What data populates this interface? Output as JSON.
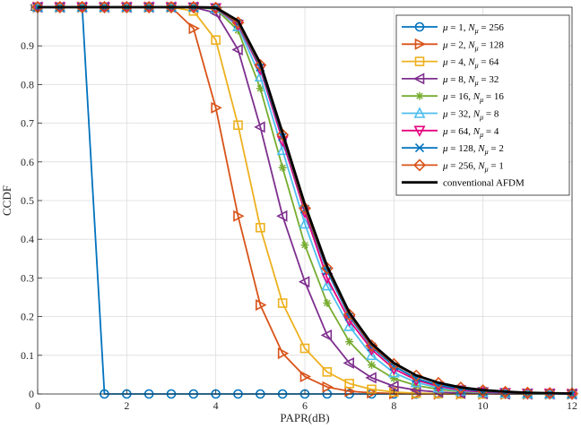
{
  "chart_data": {
    "type": "line",
    "xlabel": "PAPR(dB)",
    "ylabel": "CCDF",
    "xlim": [
      0,
      12
    ],
    "ylim": [
      0,
      1
    ],
    "xticks": [
      "0",
      "2",
      "4",
      "6",
      "8",
      "10",
      "12"
    ],
    "yticks": [
      "0",
      "0.1",
      "0.2",
      "0.3",
      "0.4",
      "0.5",
      "0.6",
      "0.7",
      "0.8",
      "0.9",
      "1"
    ],
    "grid": true,
    "legend_position": "top-right",
    "x": [
      0,
      0.5,
      1,
      1.5,
      2,
      2.5,
      3,
      3.5,
      4,
      4.5,
      5,
      5.5,
      6,
      6.5,
      7,
      7.5,
      8,
      8.5,
      9,
      9.5,
      10,
      10.5,
      11,
      11.5,
      12
    ],
    "series": [
      {
        "name": "μ = 1, N_μ = 256",
        "label": {
          "mu": "1",
          "n": "256"
        },
        "color": "#0072BD",
        "marker": "circle",
        "values": [
          1,
          1,
          1,
          0,
          0,
          0,
          0,
          0,
          0,
          0,
          0,
          0,
          0,
          0,
          0,
          0,
          0,
          0,
          0,
          0,
          0,
          0,
          0,
          0,
          0
        ]
      },
      {
        "name": "μ = 2, N_μ = 128",
        "label": {
          "mu": "2",
          "n": "128"
        },
        "color": "#D95319",
        "marker": "triangle-right",
        "values": [
          1,
          1,
          1,
          1,
          1,
          1,
          1,
          0.945,
          0.74,
          0.46,
          0.23,
          0.105,
          0.045,
          0.018,
          0.007,
          0.003,
          0.001,
          0,
          0,
          0,
          0,
          0,
          0,
          0,
          0
        ]
      },
      {
        "name": "μ = 4, N_μ = 64",
        "label": {
          "mu": "4",
          "n": "64"
        },
        "color": "#EDB120",
        "marker": "square",
        "values": [
          1,
          1,
          1,
          1,
          1,
          1,
          1,
          0.99,
          0.915,
          0.695,
          0.43,
          0.235,
          0.118,
          0.057,
          0.027,
          0.012,
          0.005,
          0.002,
          0.001,
          0,
          0,
          0,
          0,
          0,
          0
        ]
      },
      {
        "name": "μ = 8, N_μ = 32",
        "label": {
          "mu": "8",
          "n": "32"
        },
        "color": "#7E2F8E",
        "marker": "triangle-left",
        "values": [
          1,
          1,
          1,
          1,
          1,
          1,
          1,
          1,
          0.985,
          0.89,
          0.69,
          0.46,
          0.29,
          0.152,
          0.08,
          0.042,
          0.02,
          0.01,
          0.005,
          0.002,
          0.001,
          0,
          0,
          0,
          0
        ]
      },
      {
        "name": "μ = 16, N_μ = 16",
        "label": {
          "mu": "16",
          "n": "16"
        },
        "color": "#77AC30",
        "marker": "star",
        "values": [
          1,
          1,
          1,
          1,
          1,
          1,
          1,
          1,
          0.995,
          0.94,
          0.79,
          0.585,
          0.385,
          0.235,
          0.135,
          0.075,
          0.04,
          0.022,
          0.012,
          0.006,
          0.003,
          0.001,
          0,
          0,
          0
        ]
      },
      {
        "name": "μ = 32, N_μ = 8",
        "label": {
          "mu": "32",
          "n": "8"
        },
        "color": "#4DBEEE",
        "marker": "triangle-up",
        "values": [
          1,
          1,
          1,
          1,
          1,
          1,
          1,
          1,
          0.997,
          0.95,
          0.82,
          0.63,
          0.44,
          0.28,
          0.175,
          0.1,
          0.055,
          0.03,
          0.016,
          0.008,
          0.004,
          0.002,
          0.001,
          0,
          0
        ]
      },
      {
        "name": "μ = 64, N_μ = 4",
        "label": {
          "mu": "64",
          "n": "4"
        },
        "color": "#E6007E",
        "marker": "triangle-down",
        "values": [
          1,
          1,
          1,
          1,
          1,
          1,
          1,
          1,
          0.998,
          0.955,
          0.84,
          0.655,
          0.47,
          0.3,
          0.19,
          0.115,
          0.065,
          0.036,
          0.02,
          0.01,
          0.005,
          0.003,
          0.001,
          0.001,
          0
        ]
      },
      {
        "name": "μ = 128, N_μ = 2",
        "label": {
          "mu": "128",
          "n": "2"
        },
        "color": "#0072BD",
        "marker": "x",
        "values": [
          1,
          1,
          1,
          1,
          1,
          1,
          1,
          1,
          0.998,
          0.958,
          0.845,
          0.665,
          0.478,
          0.318,
          0.2,
          0.122,
          0.072,
          0.04,
          0.023,
          0.013,
          0.007,
          0.004,
          0.002,
          0.001,
          0
        ]
      },
      {
        "name": "μ = 256, N_μ = 1",
        "label": {
          "mu": "256",
          "n": "1"
        },
        "color": "#D95319",
        "marker": "diamond",
        "values": [
          1,
          1,
          1,
          1,
          1,
          1,
          1,
          1,
          0.998,
          0.96,
          0.85,
          0.67,
          0.48,
          0.325,
          0.205,
          0.125,
          0.077,
          0.047,
          0.028,
          0.016,
          0.009,
          0.005,
          0.003,
          0.002,
          0.001
        ]
      },
      {
        "name": "conventional AFDM",
        "label": {
          "text": "conventional AFDM"
        },
        "color": "#000000",
        "marker": "none",
        "values": [
          1,
          1,
          1,
          1,
          1,
          1,
          1,
          1,
          0.999,
          0.965,
          0.855,
          0.675,
          0.49,
          0.33,
          0.21,
          0.13,
          0.08,
          0.048,
          0.029,
          0.017,
          0.01,
          0.006,
          0.003,
          0.002,
          0.001
        ]
      }
    ]
  }
}
